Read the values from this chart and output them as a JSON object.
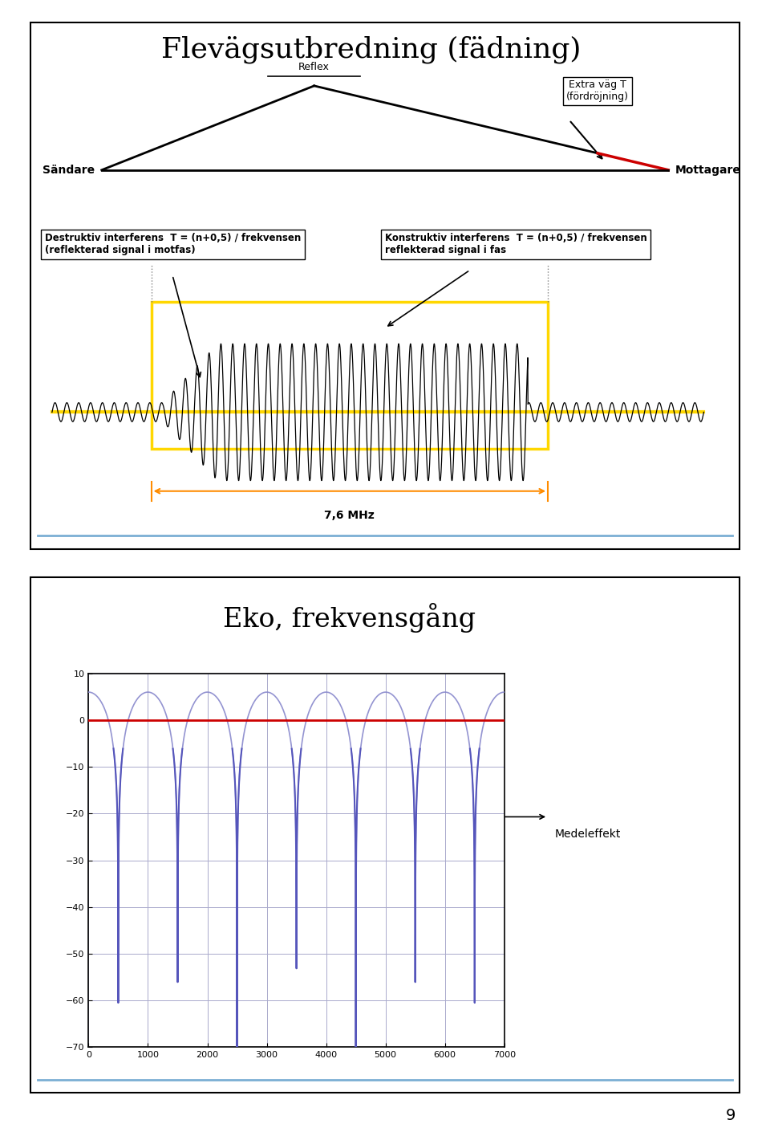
{
  "title1": "Flevägsutbredning (fädning)",
  "title2": "Eko, frekvensgång",
  "page_number": "9",
  "panel1": {
    "reflex_label": "Reflex",
    "extra_vag_label": "Extra väg T\n(fördröjning)",
    "sandare_label": "Sändare",
    "mottagare_label": "Mottagare",
    "destruktiv_text": "Destruktiv interferens  T = (n+0,5) / frekvensen\n(reflekterad signal i motfas)",
    "konstruktiv_text": "Konstruktiv interferens  T = (n+0,5) / frekvensen\nreflekterad signal i fas",
    "freq_label": "7,6 MHz",
    "yellow_color": "#FFD700",
    "orange_color": "#FF8C00",
    "red_color": "#CC0000",
    "blue_line_color": "#7BAFD4"
  },
  "panel2": {
    "plot_line_color": "#5555BB",
    "plot_light_color": "#8888CC",
    "mean_line_color": "#CC0000",
    "grid_color": "#AAAACC",
    "medeleffekt_label": "Medeleffekt",
    "xlim": [
      0,
      7000
    ],
    "ylim": [
      -70,
      10
    ],
    "yticks": [
      10,
      0,
      -10,
      -20,
      -30,
      -40,
      -50,
      -60,
      -70
    ],
    "xticks": [
      0,
      1000,
      2000,
      3000,
      4000,
      5000,
      6000,
      7000
    ]
  }
}
